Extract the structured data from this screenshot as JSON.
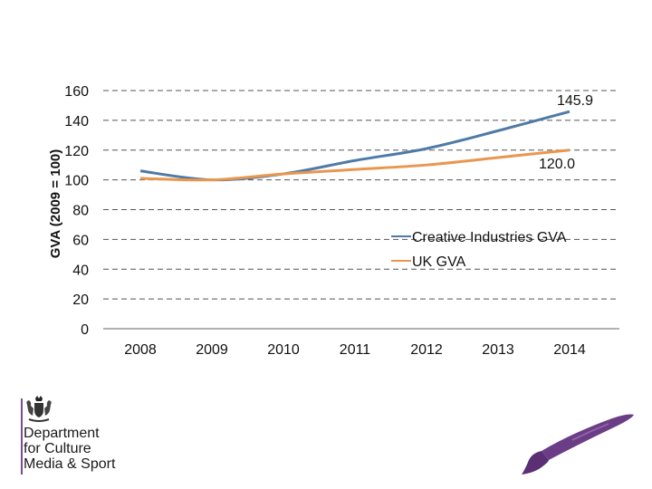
{
  "chart_data": {
    "type": "line",
    "title": "",
    "xlabel": "",
    "ylabel": "GVA (2009 = 100)",
    "categories": [
      "2008",
      "2009",
      "2010",
      "2011",
      "2012",
      "2013",
      "2014"
    ],
    "ylim": [
      0,
      160
    ],
    "yticks": [
      0,
      20,
      40,
      60,
      80,
      100,
      120,
      140,
      160
    ],
    "grid": true,
    "legend_position": "center-right",
    "series": [
      {
        "name": "Creative Industries GVA",
        "color": "#4f7aa6",
        "values": [
          106,
          100,
          104,
          113,
          121,
          133,
          145.9
        ]
      },
      {
        "name": "UK GVA",
        "color": "#e9974f",
        "values": [
          101,
          100,
          104,
          107,
          110,
          115,
          120.0
        ]
      }
    ],
    "data_labels": [
      {
        "series": 0,
        "index": 6,
        "text": "145.9"
      },
      {
        "series": 1,
        "index": 6,
        "text": "120.0"
      }
    ]
  },
  "logo": {
    "lines": [
      "Department",
      "for Culture",
      "Media & Sport"
    ],
    "crest_icon": "royal-coat-of-arms-icon",
    "brush_icon": "paintbrush-icon",
    "accent_color": "#7d4b8e"
  }
}
